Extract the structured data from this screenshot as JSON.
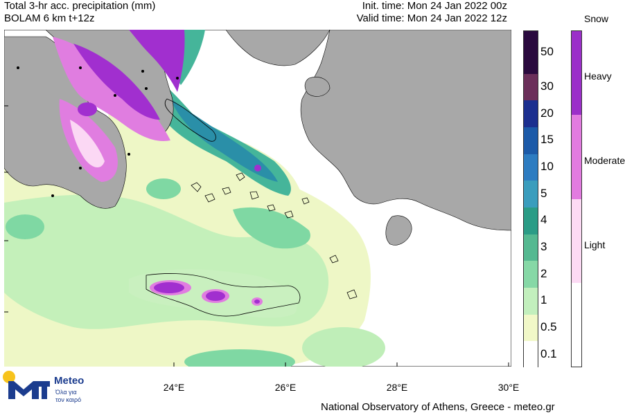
{
  "header": {
    "title_line1": "Total 3-hr acc. precipitation (mm)",
    "title_line2": "BOLAM 6 km t+12z",
    "init_time": "Init. time: Mon 24 Jan 2022 00z",
    "valid_time": "Valid time: Mon 24 Jan 2022 12z"
  },
  "map": {
    "x_axis_labels": [
      "24°E",
      "26°E",
      "28°E",
      "30°E"
    ],
    "colors": {
      "sea": "#ffffff",
      "land_other": "#a8a8a8",
      "precip_light": "#eef7c6",
      "precip_green": "#b9efb4",
      "precip_mid": "#7fd8a3",
      "precip_teal": "#45b59a",
      "precip_blue": "#2a8fa8",
      "snow_heavy": "#a12fcf",
      "snow_moderate": "#e07de0",
      "snow_light": "#fbd8f4"
    }
  },
  "precip_scale": {
    "labels": [
      "50",
      "30",
      "20",
      "15",
      "10",
      "5",
      "4",
      "3",
      "2",
      "1",
      "0.5",
      "0.1"
    ],
    "colors": [
      "#2a0a3e",
      "#6b2f5a",
      "#1c2f8f",
      "#1c5aa8",
      "#2d7cc1",
      "#3a9dbd",
      "#2b9c86",
      "#55b991",
      "#86d8a6",
      "#c2efbd",
      "#f1f8c8",
      "#ffffff"
    ]
  },
  "snow_scale": {
    "title": "Snow",
    "labels": [
      "Heavy",
      "Moderate",
      "Light"
    ],
    "colors": [
      "#9b2fc9",
      "#e27be0",
      "#fcdaf4",
      "#ffffff"
    ]
  },
  "logo": {
    "word": "Meteo",
    "tag1": "Όλα για",
    "tag2": "τον καιρό"
  },
  "credit": "National Observatory of Athens, Greece - meteo.gr"
}
